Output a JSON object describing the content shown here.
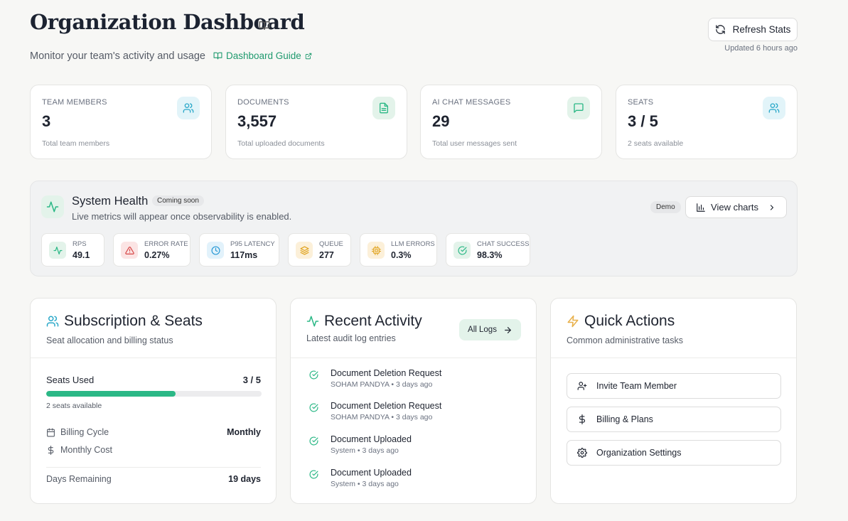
{
  "header": {
    "title": "Organization Dashboard",
    "subtitle": "Monitor your team's activity and usage",
    "guide_link": "Dashboard Guide",
    "refresh_label": "Refresh Stats",
    "updated": "Updated 6 hours ago"
  },
  "stats": [
    {
      "label": "TEAM MEMBERS",
      "value": "3",
      "sub": "Total team members",
      "icon": "users-icon",
      "color": "#2aa8c9"
    },
    {
      "label": "DOCUMENTS",
      "value": "3,557",
      "sub": "Total uploaded documents",
      "icon": "document-icon",
      "color": "#2bb886"
    },
    {
      "label": "AI CHAT MESSAGES",
      "value": "29",
      "sub": "Total user messages sent",
      "icon": "message-icon",
      "color": "#2bb886"
    },
    {
      "label": "SEATS",
      "value": "3 / 5",
      "sub": "2 seats available",
      "icon": "users-icon",
      "color": "#2aa8c9"
    }
  ],
  "health": {
    "title": "System Health",
    "badge": "Coming soon",
    "description": "Live metrics will appear once observability is enabled.",
    "demo_badge": "Demo",
    "view_charts": "View charts",
    "metrics": [
      {
        "label": "RPS",
        "value": "49.1",
        "icon": "activity-icon"
      },
      {
        "label": "ERROR RATE",
        "value": "0.27%",
        "icon": "warning-icon"
      },
      {
        "label": "P95 LATENCY",
        "value": "117ms",
        "icon": "clock-icon"
      },
      {
        "label": "QUEUE",
        "value": "277",
        "icon": "layers-icon"
      },
      {
        "label": "LLM ERRORS",
        "value": "0.3%",
        "icon": "chip-icon"
      },
      {
        "label": "CHAT SUCCESS",
        "value": "98.3%",
        "icon": "check-circle-icon"
      }
    ]
  },
  "subscription": {
    "title": "Subscription & Seats",
    "description": "Seat allocation and billing status",
    "seats_label": "Seats Used",
    "seats_value": "3 / 5",
    "seats_fraction": 0.6,
    "seats_available": "2 seats available",
    "billing_cycle_label": "Billing Cycle",
    "billing_cycle_value": "Monthly",
    "monthly_cost_label": "Monthly Cost",
    "days_remaining_label": "Days Remaining",
    "days_remaining_value": "19 days"
  },
  "activity": {
    "title": "Recent Activity",
    "description": "Latest audit log entries",
    "all_logs": "All Logs",
    "items": [
      {
        "title": "Document Deletion Request",
        "meta": "SOHAM PANDYA • 3 days ago"
      },
      {
        "title": "Document Deletion Request",
        "meta": "SOHAM PANDYA • 3 days ago"
      },
      {
        "title": "Document Uploaded",
        "meta": "System • 3 days ago"
      },
      {
        "title": "Document Uploaded",
        "meta": "System • 3 days ago"
      }
    ]
  },
  "quick_actions": {
    "title": "Quick Actions",
    "description": "Common administrative tasks",
    "items": [
      {
        "label": "Invite Team Member",
        "icon": "user-plus-icon"
      },
      {
        "label": "Billing & Plans",
        "icon": "dollar-icon"
      },
      {
        "label": "Organization Settings",
        "icon": "gear-icon"
      }
    ]
  },
  "colors": {
    "accent_green": "#2bb886",
    "accent_teal": "#2aa8c9",
    "background": "#f7f7f5"
  }
}
